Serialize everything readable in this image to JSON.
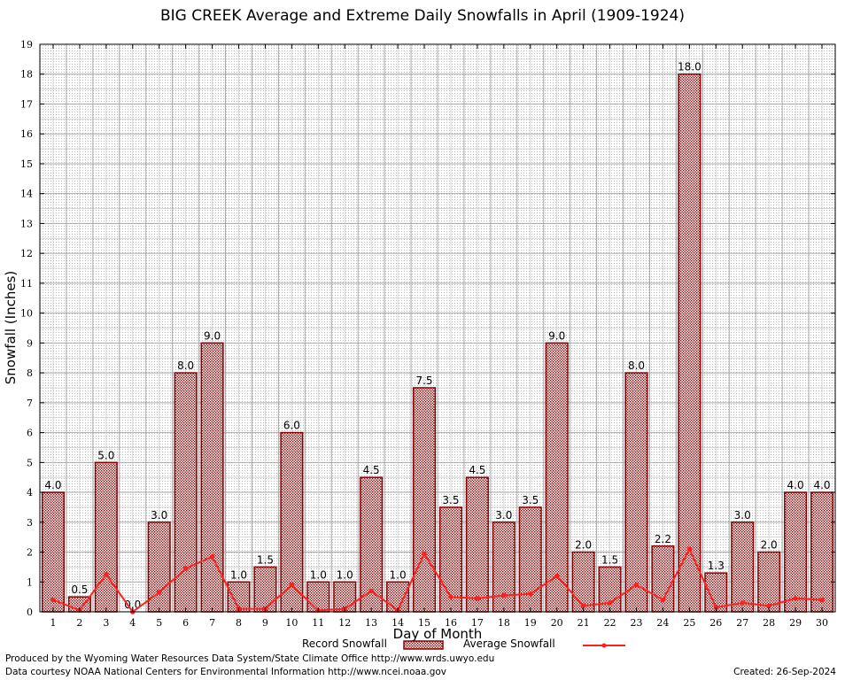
{
  "chart_data": {
    "type": "bar",
    "title": "BIG CREEK Average and Extreme Daily Snowfalls in April (1909-1924)",
    "xlabel": "Day of Month",
    "ylabel": "Snowfall (Inches)",
    "ylim": [
      0,
      19
    ],
    "yticks": [
      "0",
      "1",
      "2",
      "3",
      "4",
      "5",
      "6",
      "7",
      "8",
      "9",
      "10",
      "11",
      "12",
      "13",
      "14",
      "15",
      "16",
      "17",
      "18",
      "19"
    ],
    "categories": [
      "1",
      "2",
      "3",
      "4",
      "5",
      "6",
      "7",
      "8",
      "9",
      "10",
      "11",
      "12",
      "13",
      "14",
      "15",
      "16",
      "17",
      "18",
      "19",
      "20",
      "21",
      "22",
      "23",
      "24",
      "25",
      "26",
      "27",
      "28",
      "29",
      "30"
    ],
    "grid": true,
    "series": [
      {
        "name": "Record Snowfall",
        "type": "bar",
        "color": "#8b0000",
        "values": [
          4.0,
          0.5,
          5.0,
          0.0,
          3.0,
          8.0,
          9.0,
          1.0,
          1.5,
          6.0,
          1.0,
          1.0,
          4.5,
          1.0,
          7.5,
          3.5,
          4.5,
          3.0,
          3.5,
          9.0,
          2.0,
          1.5,
          8.0,
          2.2,
          18.0,
          1.3,
          3.0,
          2.0,
          4.0,
          4.0
        ],
        "labels": [
          "4.0",
          "0.5",
          "5.0",
          "0.0",
          "3.0",
          "8.0",
          "9.0",
          "1.0",
          "1.5",
          "6.0",
          "1.0",
          "1.0",
          "4.5",
          "1.0",
          "7.5",
          "3.5",
          "4.5",
          "3.0",
          "3.5",
          "9.0",
          "2.0",
          "1.5",
          "8.0",
          "2.2",
          "18.0",
          "1.3",
          "3.0",
          "2.0",
          "4.0",
          "4.0"
        ]
      },
      {
        "name": "Average Snowfall",
        "type": "line",
        "color": "#ff2020",
        "values": [
          0.4,
          0.05,
          1.25,
          0.0,
          0.65,
          1.45,
          1.85,
          0.1,
          0.1,
          0.9,
          0.05,
          0.1,
          0.7,
          0.05,
          1.95,
          0.5,
          0.45,
          0.55,
          0.6,
          1.2,
          0.2,
          0.3,
          0.9,
          0.4,
          2.1,
          0.15,
          0.3,
          0.2,
          0.45,
          0.4
        ]
      }
    ],
    "legend_position": "bottom-center"
  },
  "footer": {
    "line1": "Produced by the Wyoming Water Resources Data System/State Climate Office http://www.wrds.uwyo.edu",
    "line2": "Data courtesy NOAA National Centers for Environmental Information http://www.ncei.noaa.gov",
    "created": "Created:  26-Sep-2024"
  }
}
